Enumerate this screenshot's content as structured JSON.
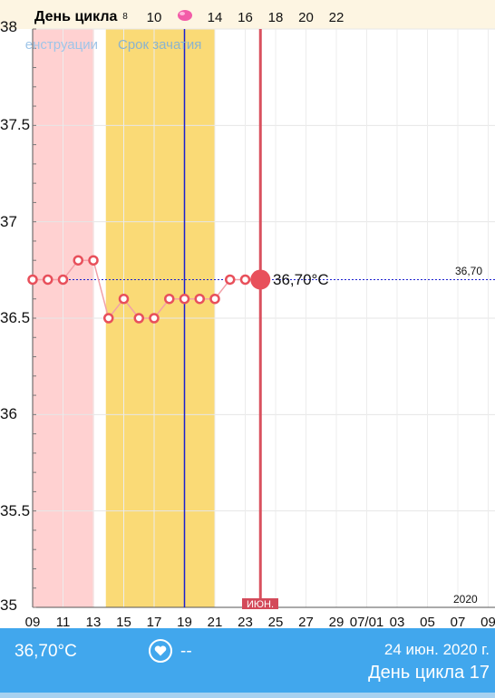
{
  "header": {
    "cycle_title": "День цикла",
    "cycle_day_labels": [
      {
        "text": "8",
        "day": 8
      },
      {
        "text": "10",
        "day": 10
      },
      {
        "text": "14",
        "day": 14
      },
      {
        "text": "16",
        "day": 16
      },
      {
        "text": "18",
        "day": 18
      },
      {
        "text": "20",
        "day": 20
      },
      {
        "text": "22",
        "day": 22
      }
    ],
    "ovulation_icon": "pink-drop-icon"
  },
  "bands": {
    "menstruation_label": "Менструации",
    "fertile_label": "Срок зачатия"
  },
  "chart_data": {
    "type": "line",
    "title": "",
    "xlabel": "",
    "ylabel": "",
    "ylim": [
      35,
      38
    ],
    "yticks": [
      "35",
      "35.5",
      "36",
      "36.5",
      "37",
      "37.5",
      "38"
    ],
    "x_tick_labels": [
      "09",
      "11",
      "13",
      "15",
      "17",
      "19",
      "21",
      "23",
      "25",
      "27",
      "29",
      "07/01",
      "03",
      "05",
      "07",
      "09"
    ],
    "x_day_of_ticks": [
      9,
      11,
      13,
      15,
      17,
      19,
      21,
      23,
      25,
      27,
      29,
      31,
      33,
      35,
      37,
      39
    ],
    "xlim_day": [
      9,
      39
    ],
    "series": [
      {
        "name": "",
        "x": [
          9,
          10,
          11,
          12,
          13,
          14,
          15,
          16,
          17,
          18,
          19,
          20,
          21,
          22,
          23,
          24
        ],
        "values": [
          36.7,
          36.7,
          36.7,
          36.8,
          36.8,
          36.5,
          36.6,
          36.5,
          36.5,
          36.6,
          36.6,
          36.6,
          36.6,
          36.7,
          36.7,
          36.7
        ]
      }
    ],
    "menstruation_days": [
      9,
      13
    ],
    "fertile_days": [
      14,
      21
    ],
    "ovulation_day": 19,
    "current_day": 24,
    "reference_value": 36.7,
    "reference_label": "36,70",
    "current_value_label": "36,70°C",
    "month_label": "ИЮН.",
    "year_label": "2020",
    "grid": true,
    "colors": {
      "menstruation_band": "#ffd1d1",
      "fertile_band": "#fada76",
      "line": "#f2a0a8",
      "marker": "#e8505b",
      "ovulation_line": "#1b1fd0",
      "current_line": "#d9505e",
      "reference_line": "#1b1fd0"
    }
  },
  "bottom_bar": {
    "temperature": "36,70°C",
    "heart_icon": "heart-icon",
    "pulse": "--",
    "date": "24 июн. 2020 г.",
    "cycle_day": "День цикла 17"
  }
}
